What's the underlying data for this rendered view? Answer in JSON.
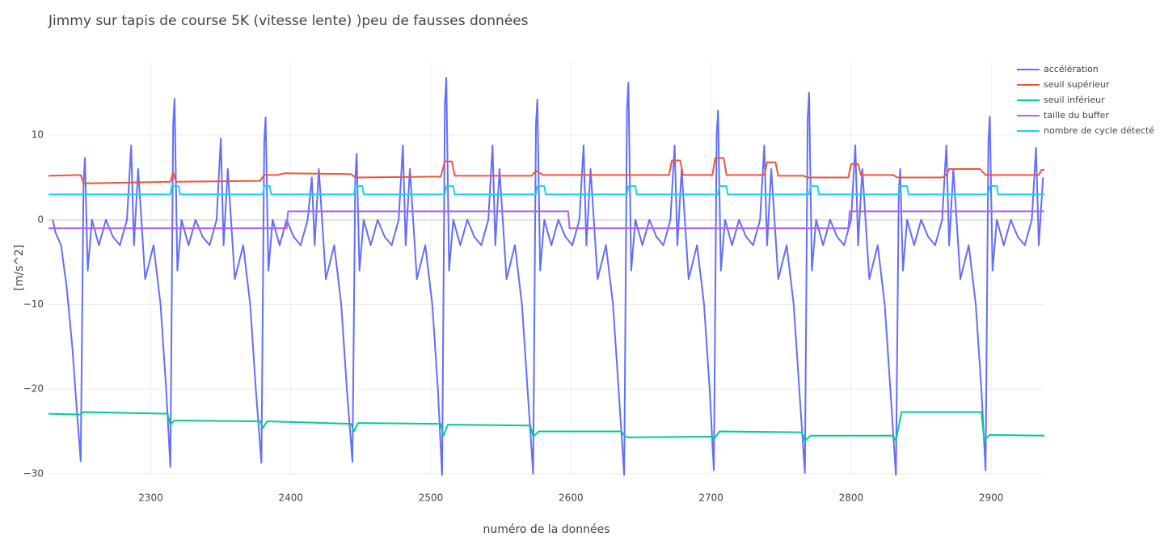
{
  "chart_data": {
    "type": "line",
    "title": "Jimmy sur tapis de course 5K (vitesse lente) )peu de fausses données",
    "x_label": "numéro de la données",
    "y_label": "[m/s^2]",
    "xlim": [
      2227,
      2938
    ],
    "ylim": [
      -30.2,
      18.8
    ],
    "xticks": [
      2300,
      2400,
      2500,
      2600,
      2700,
      2800,
      2900
    ],
    "yticks": [
      {
        "value": -30,
        "label": "−30"
      },
      {
        "value": -20,
        "label": "−20"
      },
      {
        "value": -10,
        "label": "−10"
      },
      0,
      10
    ],
    "grid": true,
    "legend": "top-right",
    "series": [
      {
        "name": "accélération",
        "color": "#636efa",
        "x": [
          2230,
          2232,
          2236,
          2240,
          2244,
          2247,
          2250,
          2252,
          2253,
          2255,
          2258,
          2263,
          2268,
          2273,
          2278,
          2283,
          2286,
          2288,
          2291,
          2296,
          2302,
          2307,
          2311,
          2314,
          2316,
          2317,
          2319,
          2322,
          2327,
          2332,
          2337,
          2342,
          2347,
          2350,
          2352,
          2355,
          2360,
          2366,
          2371,
          2375,
          2379,
          2381,
          2382,
          2384,
          2387,
          2392,
          2397,
          2402,
          2407,
          2412,
          2415,
          2417,
          2420,
          2425,
          2431,
          2436,
          2440,
          2444,
          2446,
          2447,
          2449,
          2452,
          2457,
          2462,
          2467,
          2472,
          2477,
          2480,
          2482,
          2485,
          2490,
          2496,
          2501,
          2505,
          2508,
          2510,
          2511,
          2513,
          2516,
          2521,
          2526,
          2531,
          2536,
          2541,
          2544,
          2546,
          2549,
          2554,
          2560,
          2565,
          2569,
          2573,
          2575,
          2576,
          2578,
          2581,
          2586,
          2591,
          2596,
          2601,
          2606,
          2609,
          2611,
          2614,
          2619,
          2625,
          2630,
          2634,
          2638,
          2640,
          2641,
          2643,
          2646,
          2651,
          2656,
          2661,
          2666,
          2671,
          2674,
          2676,
          2679,
          2684,
          2690,
          2695,
          2699,
          2702,
          2704,
          2705,
          2707,
          2710,
          2715,
          2720,
          2725,
          2730,
          2735,
          2738,
          2740,
          2743,
          2748,
          2754,
          2759,
          2763,
          2767,
          2769,
          2770,
          2772,
          2775,
          2780,
          2785,
          2790,
          2795,
          2800,
          2803,
          2805,
          2808,
          2813,
          2819,
          2824,
          2828,
          2832,
          2834,
          2835,
          2837,
          2840,
          2845,
          2850,
          2855,
          2860,
          2865,
          2868,
          2870,
          2873,
          2878,
          2884,
          2889,
          2893,
          2896,
          2898,
          2899,
          2901,
          2904,
          2909,
          2914,
          2919,
          2924,
          2929,
          2932,
          2934,
          2937
        ],
        "values": [
          0,
          -1.5,
          -3,
          -8,
          -15,
          -22,
          -28.5,
          4.3,
          7.3,
          -6,
          0,
          -3,
          0,
          -2,
          -3,
          0,
          8.8,
          -3,
          6,
          -7,
          -3,
          -10,
          -20,
          -29.2,
          11.3,
          14.3,
          -6,
          0,
          -3,
          0,
          -2,
          -3,
          0,
          9.6,
          -3,
          6,
          -7,
          -3,
          -10,
          -20,
          -28.7,
          9.1,
          12.1,
          -6,
          0,
          -3,
          0,
          -2,
          -3,
          0,
          5,
          -3,
          6,
          -7,
          -3,
          -10,
          -20,
          -28.6,
          4.8,
          7.8,
          -6,
          0,
          -3,
          0,
          -2,
          -3,
          0,
          8.8,
          -3,
          6,
          -7,
          -3,
          -10,
          -20,
          -30.3,
          13.8,
          16.8,
          -6,
          0,
          -3,
          0,
          -2,
          -3,
          0,
          8.8,
          -3,
          6,
          -7,
          -3,
          -10,
          -20,
          -30,
          11.2,
          14.2,
          -6,
          0,
          -3,
          0,
          -2,
          -3,
          0,
          8.8,
          -3,
          6,
          -7,
          -3,
          -10,
          -20,
          -30.2,
          13.2,
          16.2,
          -6,
          0,
          -3,
          0,
          -2,
          -3,
          0,
          8.8,
          -3,
          6,
          -7,
          -3,
          -10,
          -20,
          -29.6,
          9.9,
          12.9,
          -6,
          0,
          -3,
          0,
          -2,
          -3,
          0,
          8.8,
          -3,
          6,
          -7,
          -3,
          -10,
          -20,
          -29.9,
          12,
          15,
          -6,
          0,
          -3,
          0,
          -2,
          -3,
          0,
          8.8,
          -3,
          6,
          -7,
          -3,
          -10,
          -20,
          -30.2,
          3,
          6,
          -6,
          0,
          -3,
          0,
          -2,
          -3,
          0,
          8.8,
          -3,
          6,
          -7,
          -3,
          -10,
          -20,
          -29.6,
          9.2,
          12.2,
          -6,
          0,
          -3,
          0,
          -2,
          -3,
          0,
          8.5,
          -3,
          5
        ]
      },
      {
        "name": "seuil supérieur",
        "color": "#ef553b",
        "x": [
          2227,
          2250,
          2252,
          2314,
          2316,
          2318,
          2378,
          2381,
          2390,
          2396,
          2443,
          2446,
          2507,
          2510,
          2515,
          2517,
          2572,
          2575,
          2580,
          2637,
          2640,
          2670,
          2672,
          2678,
          2680,
          2701,
          2703,
          2709,
          2711,
          2738,
          2740,
          2746,
          2748,
          2766,
          2769,
          2798,
          2800,
          2805,
          2807,
          2830,
          2833,
          2865,
          2868,
          2870,
          2892,
          2896,
          2934,
          2936,
          2938
        ],
        "values": [
          5.2,
          5.3,
          4.3,
          4.5,
          5.6,
          4.5,
          4.6,
          5.3,
          5.3,
          5.5,
          5.4,
          5.0,
          5.1,
          6.9,
          6.9,
          5.2,
          5.2,
          5.8,
          5.3,
          5.3,
          5.3,
          5.3,
          7.0,
          7.0,
          5.3,
          5.3,
          7.3,
          7.3,
          5.3,
          5.3,
          6.8,
          6.8,
          5.2,
          5.2,
          5.0,
          5.0,
          6.6,
          6.6,
          5.3,
          5.3,
          5.0,
          5.0,
          5.3,
          6.0,
          6.0,
          5.3,
          5.3,
          5.9,
          5.9
        ]
      },
      {
        "name": "seuil inférieur",
        "color": "#00cc96",
        "x": [
          2227,
          2250,
          2252,
          2312,
          2314,
          2317,
          2378,
          2380,
          2383,
          2443,
          2445,
          2448,
          2507,
          2509,
          2512,
          2571,
          2573,
          2577,
          2636,
          2638,
          2641,
          2700,
          2702,
          2706,
          2765,
          2767,
          2771,
          2830,
          2832,
          2836,
          2893,
          2895,
          2899,
          2938
        ],
        "values": [
          -22.9,
          -23.0,
          -22.7,
          -22.9,
          -24.2,
          -23.7,
          -23.8,
          -24.6,
          -23.8,
          -24.1,
          -25.0,
          -24.0,
          -24.1,
          -25.5,
          -24.2,
          -24.3,
          -25.6,
          -25.0,
          -25.0,
          -25.5,
          -25.7,
          -25.6,
          -25.9,
          -25.0,
          -25.1,
          -26.1,
          -25.5,
          -25.5,
          -26.1,
          -22.7,
          -22.7,
          -26.0,
          -25.4,
          -25.5
        ]
      },
      {
        "name": "taille du buffer",
        "color": "#ab63fa",
        "x": [
          2227,
          2397,
          2398,
          2598,
          2599,
          2798,
          2799,
          2938
        ],
        "values": [
          -1,
          -1,
          1,
          1,
          -1,
          -1,
          1,
          1
        ]
      },
      {
        "name": "nombre de cycle détecté",
        "color": "#19d3f3",
        "x": [
          2227,
          2314,
          2315,
          2320,
          2321,
          2380,
          2381,
          2385,
          2386,
          2445,
          2446,
          2451,
          2452,
          2510,
          2511,
          2516,
          2517,
          2575,
          2576,
          2581,
          2582,
          2640,
          2641,
          2646,
          2647,
          2705,
          2706,
          2711,
          2712,
          2770,
          2771,
          2776,
          2777,
          2834,
          2835,
          2840,
          2841,
          2898,
          2899,
          2904,
          2905,
          2938
        ],
        "values": [
          3,
          3,
          4,
          4,
          3,
          3,
          4,
          4,
          3,
          3,
          4,
          4,
          3,
          3,
          4,
          4,
          3,
          3,
          4,
          4,
          3,
          3,
          4,
          4,
          3,
          3,
          4,
          4,
          3,
          3,
          4,
          4,
          3,
          3,
          4,
          4,
          3,
          3,
          4,
          4,
          3,
          3
        ]
      }
    ]
  }
}
